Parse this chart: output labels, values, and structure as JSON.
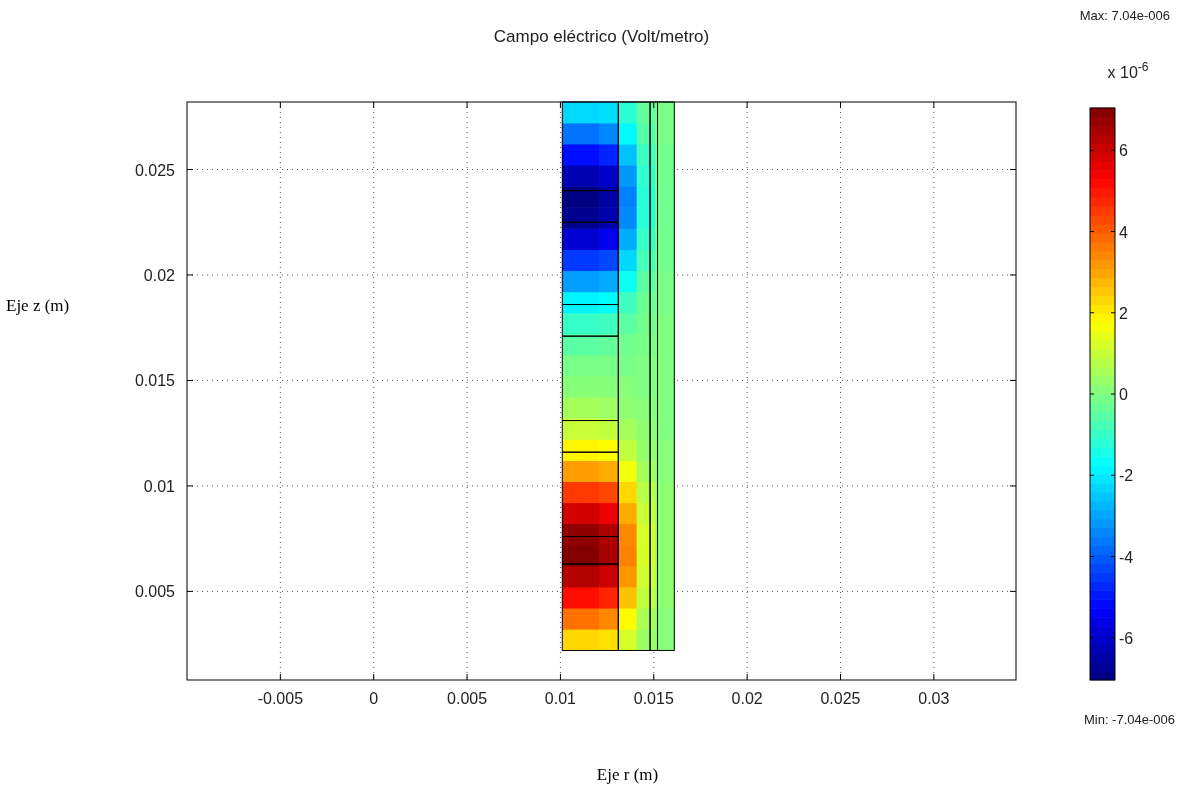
{
  "chart_data": {
    "type": "scatter",
    "title": "Campo eléctrico (Volt/metro)",
    "xlabel": "Eje r  (m)",
    "ylabel": "Eje z  (m)",
    "clabel": "x 10$^{-6}$",
    "marker": "square",
    "grid": true,
    "xlim": [
      -0.01,
      0.0344
    ],
    "ylim": [
      0.0008,
      0.0282
    ],
    "xticks": [
      -0.005,
      0,
      0.005,
      0.01,
      0.015,
      0.02,
      0.025,
      0.03
    ],
    "yticks": [
      0.005,
      0.01,
      0.015,
      0.02,
      0.025
    ],
    "clim": [
      -7.04,
      7.04
    ],
    "cticks": [
      -6,
      -4,
      -2,
      0,
      2,
      4,
      6
    ],
    "annotations": [
      "Max: 7.04e-006",
      "Min: -7.04e-006"
    ],
    "x": [
      0.0106,
      0.0106,
      0.0106,
      0.0106,
      0.0106,
      0.0106,
      0.0106,
      0.0106,
      0.0106,
      0.0106,
      0.0106,
      0.0106,
      0.0106,
      0.0106,
      0.0106,
      0.0106,
      0.0106,
      0.0106,
      0.0106,
      0.0106,
      0.0106,
      0.0106,
      0.0106,
      0.0106,
      0.0106,
      0.0106,
      0.0116,
      0.0116,
      0.0116,
      0.0116,
      0.0116,
      0.0116,
      0.0116,
      0.0116,
      0.0116,
      0.0116,
      0.0116,
      0.0116,
      0.0116,
      0.0116,
      0.0116,
      0.0116,
      0.0116,
      0.0116,
      0.0116,
      0.0116,
      0.0116,
      0.0116,
      0.0116,
      0.0116,
      0.0116,
      0.0116,
      0.0126,
      0.0126,
      0.0126,
      0.0126,
      0.0126,
      0.0126,
      0.0126,
      0.0126,
      0.0126,
      0.0126,
      0.0126,
      0.0126,
      0.0126,
      0.0126,
      0.0126,
      0.0126,
      0.0126,
      0.0126,
      0.0126,
      0.0126,
      0.0126,
      0.0126,
      0.0126,
      0.0126,
      0.0126,
      0.0126,
      0.0136,
      0.0136,
      0.0136,
      0.0136,
      0.0136,
      0.0136,
      0.0136,
      0.0136,
      0.0136,
      0.0136,
      0.0136,
      0.0136,
      0.0136,
      0.0136,
      0.0136,
      0.0136,
      0.0136,
      0.0136,
      0.0136,
      0.0136,
      0.0136,
      0.0136,
      0.0136,
      0.0136,
      0.0136,
      0.0136,
      0.0146,
      0.0146,
      0.0146,
      0.0146,
      0.0146,
      0.0146,
      0.0146,
      0.0146,
      0.0146,
      0.0146,
      0.0146,
      0.0146,
      0.0146,
      0.0146,
      0.0146,
      0.0146,
      0.0146,
      0.0146,
      0.0146,
      0.0146,
      0.0146,
      0.0146,
      0.0146,
      0.0146,
      0.0146,
      0.0146,
      0.0156,
      0.0156,
      0.0156,
      0.0156,
      0.0156,
      0.0156,
      0.0156,
      0.0156,
      0.0156,
      0.0156,
      0.0156,
      0.0156,
      0.0156,
      0.0156,
      0.0156,
      0.0156,
      0.0156,
      0.0156,
      0.0156,
      0.0156,
      0.0156,
      0.0156,
      0.0156,
      0.0156,
      0.0156,
      0.0156
    ],
    "values": [
      0.0027,
      0.0037,
      0.0047,
      0.0057,
      0.0067,
      0.0077,
      0.0087,
      0.0097,
      0.0107,
      0.0117,
      0.0127,
      0.0137,
      0.0147,
      0.0157,
      0.0167,
      0.0177,
      0.0187,
      0.0197,
      0.0207,
      0.0217,
      0.0227,
      0.0237,
      0.0247,
      0.0257,
      0.0267,
      0.0277,
      0.0027,
      0.0037,
      0.0047,
      0.0057,
      0.0067,
      0.0077,
      0.0087,
      0.0097,
      0.0107,
      0.0117,
      0.0127,
      0.0137,
      0.0147,
      0.0157,
      0.0167,
      0.0177,
      0.0187,
      0.0197,
      0.0207,
      0.0217,
      0.0227,
      0.0237,
      0.0247,
      0.0257,
      0.0267,
      0.0277,
      0.0027,
      0.0037,
      0.0047,
      0.0057,
      0.0067,
      0.0077,
      0.0087,
      0.0097,
      0.0107,
      0.0117,
      0.0127,
      0.0137,
      0.0147,
      0.0157,
      0.0167,
      0.0177,
      0.0187,
      0.0197,
      0.0207,
      0.0217,
      0.0227,
      0.0237,
      0.0247,
      0.0257,
      0.0267,
      0.0277,
      0.0027,
      0.0037,
      0.0047,
      0.0057,
      0.0067,
      0.0077,
      0.0087,
      0.0097,
      0.0107,
      0.0117,
      0.0127,
      0.0137,
      0.0147,
      0.0157,
      0.0167,
      0.0177,
      0.0187,
      0.0197,
      0.0207,
      0.0217,
      0.0227,
      0.0237,
      0.0247,
      0.0257,
      0.0267,
      0.0277,
      0.0027,
      0.0037,
      0.0047,
      0.0057,
      0.0067,
      0.0077,
      0.0087,
      0.0097,
      0.0107,
      0.0117,
      0.0127,
      0.0137,
      0.0147,
      0.0157,
      0.0167,
      0.0177,
      0.0187,
      0.0197,
      0.0207,
      0.0217,
      0.0227,
      0.0237,
      0.0247,
      0.0257,
      0.0267,
      0.0277,
      0.0027,
      0.0037,
      0.0047,
      0.0057,
      0.0067,
      0.0077,
      0.0087,
      0.0097,
      0.0107,
      0.0117,
      0.0127,
      0.0137,
      0.0147,
      0.0157,
      0.0167,
      0.0177,
      0.0187,
      0.0197,
      0.0207,
      0.0217,
      0.0227,
      0.0237,
      0.0247,
      0.0257,
      0.0267,
      0.0277
    ],
    "cvalues": [
      2.3,
      3.7,
      5.1,
      6.3,
      7,
      6.8,
      5.9,
      4.5,
      3.1,
      1.9,
      1,
      0.5,
      0.1,
      -0.1,
      -0.5,
      -1,
      -1.9,
      -3.1,
      -4.5,
      -5.9,
      -6.8,
      -7,
      -6.3,
      -5.1,
      -3.7,
      -2.3,
      2.3,
      3.7,
      5.1,
      6.3,
      7,
      6.8,
      5.9,
      4.5,
      3.1,
      1.9,
      1,
      0.5,
      0.1,
      -0.1,
      -0.5,
      -1,
      -1.9,
      -3.1,
      -4.5,
      -5.9,
      -6.8,
      -7,
      -6.3,
      -5.1,
      -3.7,
      -2.3,
      2.2,
      3.4,
      4.8,
      6,
      6.5,
      6.4,
      5.5,
      4.3,
      2.9,
      1.8,
      0.9,
      0.4,
      0.1,
      -0.1,
      -0.4,
      -0.9,
      -1.8,
      -2.9,
      -4.3,
      -5.5,
      -6.4,
      -6.5,
      -6,
      -4.8,
      -3.4,
      -2.2,
      1.2,
      1.8,
      2.6,
      3.2,
      3.5,
      3.4,
      2.9,
      2.3,
      1.6,
      0.9,
      0.5,
      0.2,
      0.1,
      -0.1,
      -0.2,
      -0.5,
      -0.9,
      -1.6,
      -2.3,
      -2.9,
      -3.4,
      -3.5,
      -3.2,
      -2.6,
      -1.8,
      -1.2,
      0.4,
      0.6,
      0.9,
      1.1,
      1.2,
      1.2,
      1,
      0.8,
      0.5,
      0.3,
      0.2,
      0.1,
      0,
      0,
      -0.1,
      -0.2,
      -0.3,
      -0.5,
      -0.8,
      -1,
      -1.2,
      -1.2,
      -1.1,
      -0.9,
      -0.6,
      -0.4,
      0.1,
      0.1,
      0.2,
      0.2,
      0.2,
      0.2,
      0.2,
      0.2,
      0.1,
      0.1,
      0,
      0,
      0,
      0,
      0,
      0,
      -0.1,
      -0.1,
      -0.2,
      -0.2,
      -0.2,
      -0.2,
      -0.2,
      -0.2,
      -0.1,
      -0.1
    ]
  }
}
